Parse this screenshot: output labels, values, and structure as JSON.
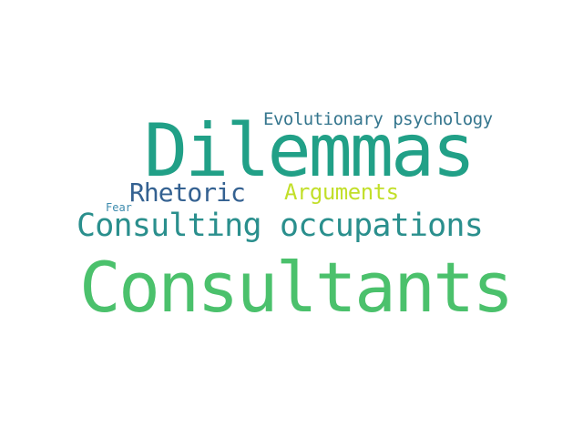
{
  "words": [
    {
      "text": "Dilemmas",
      "color": "#21a087"
    },
    {
      "text": "Evolutionary psychology",
      "color": "#35768e"
    },
    {
      "text": "Rhetoric",
      "color": "#346191"
    },
    {
      "text": "Arguments",
      "color": "#c2df2a"
    },
    {
      "text": "Fear",
      "color": "#3d8bad"
    },
    {
      "text": "Consulting occupations",
      "color": "#2a8f8d"
    },
    {
      "text": "Consultants",
      "color": "#4bc16c"
    }
  ]
}
